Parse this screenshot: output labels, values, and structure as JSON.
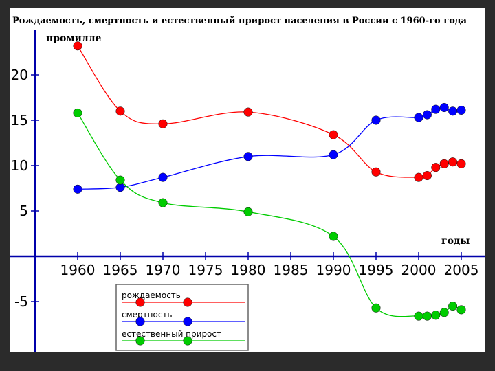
{
  "chart_data": {
    "type": "line",
    "title": "Рождаемость, смертность и естественный прирост населения в России с 1960-го года",
    "ylabel": "промилле",
    "xlabel": "годы",
    "x_ticks": [
      "1960",
      "1965",
      "1970",
      "1975",
      "1980",
      "1985",
      "1990",
      "1995",
      "2000",
      "2005"
    ],
    "y_ticks": [
      "20",
      "15",
      "10",
      "5",
      "-5"
    ],
    "xlim": [
      1960,
      2005
    ],
    "ylim": [
      -10,
      25
    ],
    "series": [
      {
        "name": "рождаемость",
        "color": "#ff0000",
        "x": [
          1960,
          1965,
          1970,
          1980,
          1990,
          1995,
          2000,
          2001,
          2002,
          2003,
          2004,
          2005
        ],
        "y": [
          23.2,
          16.0,
          14.6,
          15.9,
          13.4,
          9.3,
          8.7,
          8.9,
          9.8,
          10.2,
          10.4,
          10.2
        ]
      },
      {
        "name": "смертность",
        "color": "#0000ff",
        "x": [
          1960,
          1965,
          1970,
          1980,
          1990,
          1995,
          2000,
          2001,
          2002,
          2003,
          2004,
          2005
        ],
        "y": [
          7.4,
          7.6,
          8.7,
          11.0,
          11.2,
          15.0,
          15.3,
          15.6,
          16.2,
          16.4,
          16.0,
          16.1
        ]
      },
      {
        "name": "естественный прирост",
        "color": "#00cc00",
        "x": [
          1960,
          1965,
          1970,
          1980,
          1990,
          1995,
          2000,
          2001,
          2002,
          2003,
          2004,
          2005
        ],
        "y": [
          15.8,
          8.4,
          5.9,
          4.9,
          2.2,
          -5.7,
          -6.6,
          -6.6,
          -6.5,
          -6.2,
          -5.5,
          -5.9
        ]
      }
    ],
    "legend_position": "bottom-left"
  }
}
